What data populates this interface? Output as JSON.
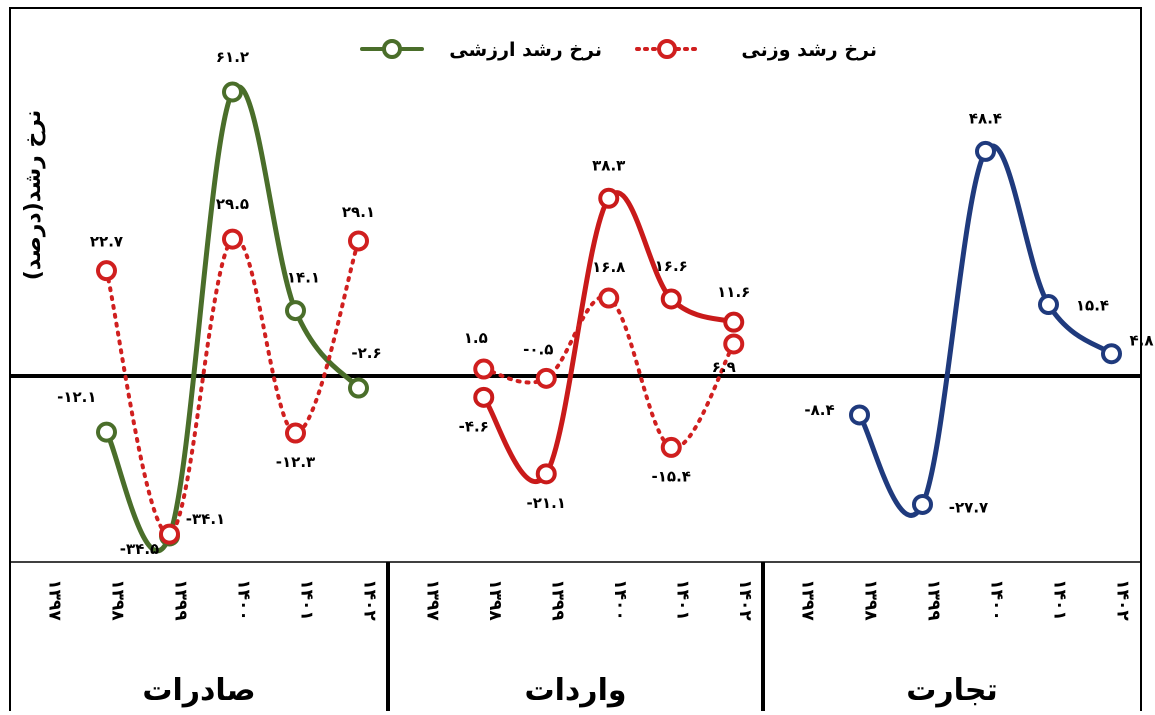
{
  "chart_data": {
    "type": "line",
    "ylabel": "نرخ رشد(درصد)",
    "legend": [
      {
        "name": "نرخ رشد ارزشی",
        "color": "#4a6e2a",
        "style": "solid"
      },
      {
        "name": "نرخ رشد وزنی",
        "color": "#d01f1f",
        "style": "dotted"
      }
    ],
    "legend_position": "top",
    "ylim": [
      -35,
      63
    ],
    "grid": false,
    "groups": [
      {
        "name": "صادرات",
        "categories": [
          "۱۳۹۷",
          "۱۳۹۸",
          "۱۳۹۹",
          "۱۴۰۰",
          "۱۴۰۱",
          "۱۴۰۲"
        ],
        "series": [
          {
            "name": "نرخ رشد ارزشی",
            "color": "#4a6e2a",
            "style": "solid",
            "values": [
              null,
              -12.1,
              -34.5,
              61.2,
              14.1,
              -2.6
            ],
            "labels": [
              "",
              "-۱۲.۱",
              "-۳۴.۵",
              "۶۱.۲",
              "۱۴.۱",
              "-۲.۶"
            ]
          },
          {
            "name": "نرخ رشد وزنی",
            "color": "#d01f1f",
            "style": "dotted",
            "values": [
              null,
              22.7,
              -34.1,
              29.5,
              -12.3,
              29.1
            ],
            "labels": [
              "",
              "۲۲.۷",
              "-۳۴.۱",
              "۲۹.۵",
              "-۱۲.۳",
              "۲۹.۱"
            ]
          }
        ]
      },
      {
        "name": "واردات",
        "categories": [
          "۱۳۹۷",
          "۱۳۹۸",
          "۱۳۹۹",
          "۱۴۰۰",
          "۱۴۰۱",
          "۱۴۰۲"
        ],
        "series": [
          {
            "name": "نرخ رشد ارزشی",
            "color": "#c91a1a",
            "style": "solid",
            "values": [
              null,
              -4.6,
              -21.1,
              38.3,
              16.6,
              11.6
            ],
            "labels": [
              "",
              "-۴.۶",
              "-۲۱.۱",
              "۳۸.۳",
              "۱۶.۶",
              "۱۱.۶"
            ]
          },
          {
            "name": "نرخ رشد وزنی",
            "color": "#d01f1f",
            "style": "dotted",
            "values": [
              null,
              1.5,
              -0.5,
              16.8,
              -15.4,
              6.9
            ],
            "labels": [
              "",
              "۱.۵",
              "-۰.۵",
              "۱۶.۸",
              "-۱۵.۴",
              "۶.۹"
            ]
          }
        ]
      },
      {
        "name": "تجارت",
        "categories": [
          "۱۳۹۷",
          "۱۳۹۸",
          "۱۳۹۹",
          "۱۴۰۰",
          "۱۴۰۱",
          "۱۴۰۲"
        ],
        "series": [
          {
            "name": "نرخ رشد ارزشی",
            "color": "#1f3a7d",
            "style": "solid",
            "values": [
              null,
              -8.4,
              -27.7,
              48.4,
              15.4,
              4.8
            ],
            "labels": [
              "",
              "-۸.۴",
              "-۲۷.۷",
              "۴۸.۴",
              "۱۵.۴",
              "۴.۸"
            ]
          }
        ]
      }
    ]
  }
}
